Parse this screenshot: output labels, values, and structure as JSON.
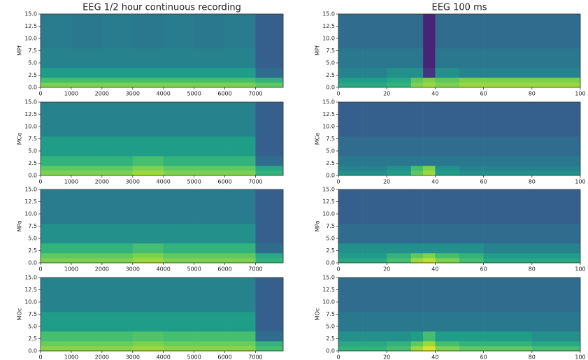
{
  "chart_data": [
    {
      "type": "heatmap",
      "title": "EEG 1/2 hour continuous recording",
      "ylabel": "MPf",
      "colormap": "viridis",
      "zlim": [
        0,
        1
      ],
      "xlim": [
        0,
        7900
      ],
      "ylim": [
        0,
        15
      ],
      "xticks": [
        0,
        1000,
        2000,
        3000,
        4000,
        5000,
        6000,
        7000
      ],
      "yticks": [
        {
          "value": 0,
          "label": "0.0"
        },
        {
          "value": 2.5,
          "label": "2.5"
        },
        {
          "value": 5,
          "label": "5.0"
        },
        {
          "value": 7.5,
          "label": "7.5"
        },
        {
          "value": 10,
          "label": "10.0"
        },
        {
          "value": 12.5,
          "label": "12.5"
        },
        {
          "value": 15,
          "label": "15.0"
        }
      ],
      "x_edges": [
        0,
        1000,
        2000,
        3000,
        4000,
        5000,
        6000,
        7000,
        7900
      ],
      "y_edges": [
        0,
        1,
        2,
        4,
        8,
        15
      ],
      "z": [
        [
          0.8,
          0.8,
          0.8,
          0.8,
          0.8,
          0.8,
          0.8,
          0.75
        ],
        [
          0.7,
          0.7,
          0.7,
          0.7,
          0.7,
          0.7,
          0.7,
          0.65
        ],
        [
          0.55,
          0.55,
          0.55,
          0.55,
          0.55,
          0.55,
          0.55,
          0.35
        ],
        [
          0.45,
          0.45,
          0.45,
          0.45,
          0.45,
          0.45,
          0.45,
          0.3
        ],
        [
          0.42,
          0.4,
          0.42,
          0.4,
          0.42,
          0.4,
          0.42,
          0.3
        ]
      ]
    },
    {
      "type": "heatmap",
      "title": "EEG 100 ms",
      "ylabel": "MPf",
      "colormap": "viridis",
      "zlim": [
        0,
        1
      ],
      "xlim": [
        0,
        100
      ],
      "ylim": [
        0,
        15
      ],
      "xticks": [
        0,
        20,
        40,
        60,
        80,
        100
      ],
      "yticks": [
        {
          "value": 0,
          "label": "0.0"
        },
        {
          "value": 2.5,
          "label": "2.5"
        },
        {
          "value": 5,
          "label": "5.0"
        },
        {
          "value": 7.5,
          "label": "7.5"
        },
        {
          "value": 10,
          "label": "10.0"
        },
        {
          "value": 12.5,
          "label": "12.5"
        },
        {
          "value": 15,
          "label": "15.0"
        }
      ],
      "x_edges": [
        0,
        10,
        20,
        30,
        35,
        40,
        50,
        60,
        80,
        100
      ],
      "y_edges": [
        0,
        1,
        2,
        4,
        8,
        15
      ],
      "z": [
        [
          0.6,
          0.6,
          0.65,
          0.8,
          0.85,
          0.8,
          0.85,
          0.85,
          0.85
        ],
        [
          0.55,
          0.55,
          0.6,
          0.75,
          0.8,
          0.75,
          0.8,
          0.8,
          0.8
        ],
        [
          0.45,
          0.45,
          0.5,
          0.5,
          0.15,
          0.5,
          0.45,
          0.45,
          0.45
        ],
        [
          0.4,
          0.4,
          0.4,
          0.4,
          0.1,
          0.4,
          0.4,
          0.4,
          0.4
        ],
        [
          0.35,
          0.35,
          0.35,
          0.35,
          0.1,
          0.35,
          0.35,
          0.35,
          0.35
        ]
      ]
    },
    {
      "type": "heatmap",
      "ylabel": "MCe",
      "colormap": "viridis",
      "zlim": [
        0,
        1
      ],
      "xlim": [
        0,
        7900
      ],
      "ylim": [
        0,
        15
      ],
      "xticks": [
        0,
        1000,
        2000,
        3000,
        4000,
        5000,
        6000,
        7000
      ],
      "yticks": [
        {
          "value": 0,
          "label": "0.0"
        },
        {
          "value": 2.5,
          "label": "2.5"
        },
        {
          "value": 5,
          "label": "5.0"
        },
        {
          "value": 7.5,
          "label": "7.5"
        },
        {
          "value": 10,
          "label": "10.0"
        },
        {
          "value": 12.5,
          "label": "12.5"
        },
        {
          "value": 15,
          "label": "15.0"
        }
      ],
      "x_edges": [
        0,
        1000,
        2000,
        3000,
        4000,
        5000,
        6000,
        7000,
        7900
      ],
      "y_edges": [
        0,
        1,
        2,
        4,
        8,
        15
      ],
      "z": [
        [
          0.8,
          0.8,
          0.8,
          0.85,
          0.8,
          0.8,
          0.8,
          0.65
        ],
        [
          0.75,
          0.75,
          0.75,
          0.8,
          0.75,
          0.75,
          0.75,
          0.6
        ],
        [
          0.65,
          0.65,
          0.65,
          0.7,
          0.65,
          0.65,
          0.65,
          0.35
        ],
        [
          0.55,
          0.55,
          0.55,
          0.55,
          0.55,
          0.55,
          0.55,
          0.3
        ],
        [
          0.45,
          0.45,
          0.45,
          0.45,
          0.45,
          0.45,
          0.45,
          0.3
        ]
      ]
    },
    {
      "type": "heatmap",
      "ylabel": "MCe",
      "colormap": "viridis",
      "zlim": [
        0,
        1
      ],
      "xlim": [
        0,
        100
      ],
      "ylim": [
        0,
        15
      ],
      "xticks": [
        0,
        20,
        40,
        60,
        80,
        100
      ],
      "yticks": [
        {
          "value": 0,
          "label": "0.0"
        },
        {
          "value": 2.5,
          "label": "2.5"
        },
        {
          "value": 5,
          "label": "5.0"
        },
        {
          "value": 7.5,
          "label": "7.5"
        },
        {
          "value": 10,
          "label": "10.0"
        },
        {
          "value": 12.5,
          "label": "12.5"
        },
        {
          "value": 15,
          "label": "15.0"
        }
      ],
      "x_edges": [
        0,
        10,
        20,
        30,
        35,
        40,
        50,
        60,
        80,
        100
      ],
      "y_edges": [
        0,
        1,
        2,
        4,
        8,
        15
      ],
      "z": [
        [
          0.5,
          0.5,
          0.55,
          0.75,
          0.85,
          0.55,
          0.5,
          0.5,
          0.5
        ],
        [
          0.45,
          0.45,
          0.5,
          0.7,
          0.8,
          0.5,
          0.45,
          0.45,
          0.45
        ],
        [
          0.4,
          0.4,
          0.4,
          0.4,
          0.4,
          0.4,
          0.4,
          0.4,
          0.4
        ],
        [
          0.35,
          0.35,
          0.35,
          0.35,
          0.35,
          0.35,
          0.35,
          0.35,
          0.35
        ],
        [
          0.3,
          0.3,
          0.3,
          0.3,
          0.3,
          0.3,
          0.3,
          0.3,
          0.3
        ]
      ]
    },
    {
      "type": "heatmap",
      "ylabel": "MPa",
      "colormap": "viridis",
      "zlim": [
        0,
        1
      ],
      "xlim": [
        0,
        7900
      ],
      "ylim": [
        0,
        15
      ],
      "xticks": [
        0,
        1000,
        2000,
        3000,
        4000,
        5000,
        6000,
        7000
      ],
      "yticks": [
        {
          "value": 0,
          "label": "0.0"
        },
        {
          "value": 2.5,
          "label": "2.5"
        },
        {
          "value": 5,
          "label": "5.0"
        },
        {
          "value": 7.5,
          "label": "7.5"
        },
        {
          "value": 10,
          "label": "10.0"
        },
        {
          "value": 12.5,
          "label": "12.5"
        },
        {
          "value": 15,
          "label": "15.0"
        }
      ],
      "x_edges": [
        0,
        1000,
        2000,
        3000,
        4000,
        5000,
        6000,
        7000,
        7900
      ],
      "y_edges": [
        0,
        1,
        2,
        4,
        8,
        15
      ],
      "z": [
        [
          0.8,
          0.8,
          0.8,
          0.85,
          0.8,
          0.8,
          0.8,
          0.65
        ],
        [
          0.75,
          0.75,
          0.75,
          0.8,
          0.75,
          0.75,
          0.75,
          0.6
        ],
        [
          0.65,
          0.65,
          0.65,
          0.7,
          0.65,
          0.65,
          0.65,
          0.35
        ],
        [
          0.5,
          0.5,
          0.5,
          0.5,
          0.5,
          0.5,
          0.5,
          0.3
        ],
        [
          0.42,
          0.42,
          0.42,
          0.42,
          0.42,
          0.42,
          0.42,
          0.3
        ]
      ]
    },
    {
      "type": "heatmap",
      "ylabel": "MPa",
      "colormap": "viridis",
      "zlim": [
        0,
        1
      ],
      "xlim": [
        0,
        100
      ],
      "ylim": [
        0,
        15
      ],
      "xticks": [
        0,
        20,
        40,
        60,
        80,
        100
      ],
      "yticks": [
        {
          "value": 0,
          "label": "0.0"
        },
        {
          "value": 2.5,
          "label": "2.5"
        },
        {
          "value": 5,
          "label": "5.0"
        },
        {
          "value": 7.5,
          "label": "7.5"
        },
        {
          "value": 10,
          "label": "10.0"
        },
        {
          "value": 12.5,
          "label": "12.5"
        },
        {
          "value": 15,
          "label": "15.0"
        }
      ],
      "x_edges": [
        0,
        10,
        20,
        30,
        35,
        40,
        50,
        60,
        80,
        100
      ],
      "y_edges": [
        0,
        1,
        2,
        4,
        8,
        15
      ],
      "z": [
        [
          0.6,
          0.6,
          0.7,
          0.85,
          0.9,
          0.8,
          0.7,
          0.6,
          0.6
        ],
        [
          0.55,
          0.55,
          0.65,
          0.75,
          0.8,
          0.7,
          0.65,
          0.55,
          0.55
        ],
        [
          0.5,
          0.5,
          0.5,
          0.5,
          0.5,
          0.5,
          0.5,
          0.45,
          0.45
        ],
        [
          0.35,
          0.35,
          0.35,
          0.35,
          0.35,
          0.35,
          0.35,
          0.35,
          0.35
        ],
        [
          0.3,
          0.3,
          0.3,
          0.3,
          0.3,
          0.3,
          0.3,
          0.3,
          0.3
        ]
      ]
    },
    {
      "type": "heatmap",
      "ylabel": "MOc",
      "colormap": "viridis",
      "zlim": [
        0,
        1
      ],
      "xlim": [
        0,
        7900
      ],
      "ylim": [
        0,
        15
      ],
      "xticks": [
        0,
        1000,
        2000,
        3000,
        4000,
        5000,
        6000,
        7000
      ],
      "yticks": [
        {
          "value": 0,
          "label": "0.0"
        },
        {
          "value": 2.5,
          "label": "2.5"
        },
        {
          "value": 5,
          "label": "5.0"
        },
        {
          "value": 7.5,
          "label": "7.5"
        },
        {
          "value": 10,
          "label": "10.0"
        },
        {
          "value": 12.5,
          "label": "12.5"
        },
        {
          "value": 15,
          "label": "15.0"
        }
      ],
      "x_edges": [
        0,
        1000,
        2000,
        3000,
        4000,
        5000,
        6000,
        7000,
        7900
      ],
      "y_edges": [
        0,
        1,
        2,
        4,
        8,
        15
      ],
      "z": [
        [
          0.82,
          0.82,
          0.82,
          0.85,
          0.82,
          0.82,
          0.82,
          0.7
        ],
        [
          0.77,
          0.77,
          0.77,
          0.8,
          0.77,
          0.77,
          0.77,
          0.65
        ],
        [
          0.7,
          0.7,
          0.7,
          0.72,
          0.7,
          0.7,
          0.7,
          0.35
        ],
        [
          0.55,
          0.55,
          0.55,
          0.55,
          0.55,
          0.55,
          0.55,
          0.3
        ],
        [
          0.45,
          0.45,
          0.45,
          0.45,
          0.45,
          0.45,
          0.45,
          0.3
        ]
      ]
    },
    {
      "type": "heatmap",
      "ylabel": "MOc",
      "colormap": "viridis",
      "zlim": [
        0,
        1
      ],
      "xlim": [
        0,
        100
      ],
      "ylim": [
        0,
        15
      ],
      "xticks": [
        0,
        20,
        40,
        60,
        80,
        100
      ],
      "yticks": [
        {
          "value": 0,
          "label": "0.0"
        },
        {
          "value": 2.5,
          "label": "2.5"
        },
        {
          "value": 5,
          "label": "5.0"
        },
        {
          "value": 7.5,
          "label": "7.5"
        },
        {
          "value": 10,
          "label": "10.0"
        },
        {
          "value": 12.5,
          "label": "12.5"
        },
        {
          "value": 15,
          "label": "15.0"
        }
      ],
      "x_edges": [
        0,
        10,
        20,
        30,
        35,
        40,
        50,
        60,
        80,
        100
      ],
      "y_edges": [
        0,
        1,
        2,
        4,
        8,
        15
      ],
      "z": [
        [
          0.65,
          0.65,
          0.7,
          0.85,
          0.95,
          0.8,
          0.75,
          0.75,
          0.7
        ],
        [
          0.6,
          0.6,
          0.65,
          0.75,
          0.85,
          0.7,
          0.65,
          0.65,
          0.6
        ],
        [
          0.5,
          0.5,
          0.5,
          0.55,
          0.7,
          0.55,
          0.55,
          0.55,
          0.5
        ],
        [
          0.4,
          0.4,
          0.4,
          0.4,
          0.4,
          0.4,
          0.4,
          0.4,
          0.4
        ],
        [
          0.35,
          0.35,
          0.35,
          0.35,
          0.35,
          0.35,
          0.35,
          0.35,
          0.35
        ]
      ]
    }
  ]
}
